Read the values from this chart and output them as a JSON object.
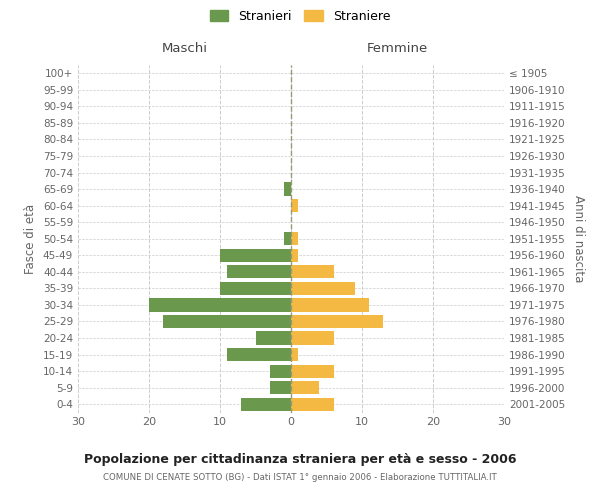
{
  "age_groups": [
    "100+",
    "95-99",
    "90-94",
    "85-89",
    "80-84",
    "75-79",
    "70-74",
    "65-69",
    "60-64",
    "55-59",
    "50-54",
    "45-49",
    "40-44",
    "35-39",
    "30-34",
    "25-29",
    "20-24",
    "15-19",
    "10-14",
    "5-9",
    "0-4"
  ],
  "birth_years": [
    "≤ 1905",
    "1906-1910",
    "1911-1915",
    "1916-1920",
    "1921-1925",
    "1926-1930",
    "1931-1935",
    "1936-1940",
    "1941-1945",
    "1946-1950",
    "1951-1955",
    "1956-1960",
    "1961-1965",
    "1966-1970",
    "1971-1975",
    "1976-1980",
    "1981-1985",
    "1986-1990",
    "1991-1995",
    "1996-2000",
    "2001-2005"
  ],
  "maschi": [
    0,
    0,
    0,
    0,
    0,
    0,
    0,
    1,
    0,
    0,
    1,
    10,
    9,
    10,
    20,
    18,
    5,
    9,
    3,
    3,
    7
  ],
  "femmine": [
    0,
    0,
    0,
    0,
    0,
    0,
    0,
    0,
    1,
    0,
    1,
    1,
    6,
    9,
    11,
    13,
    6,
    1,
    6,
    4,
    6
  ],
  "maschi_color": "#6a994e",
  "femmine_color": "#f4b942",
  "bar_height": 0.8,
  "xlim": 30,
  "title": "Popolazione per cittadinanza straniera per età e sesso - 2006",
  "subtitle": "COMUNE DI CENATE SOTTO (BG) - Dati ISTAT 1° gennaio 2006 - Elaborazione TUTTITALIA.IT",
  "ylabel_left": "Fasce di età",
  "ylabel_right": "Anni di nascita",
  "legend_stranieri": "Stranieri",
  "legend_straniere": "Straniere",
  "maschi_label": "Maschi",
  "femmine_label": "Femmine",
  "background_color": "#ffffff",
  "grid_color": "#cccccc",
  "text_color": "#666666",
  "axis_label_color": "#444444"
}
